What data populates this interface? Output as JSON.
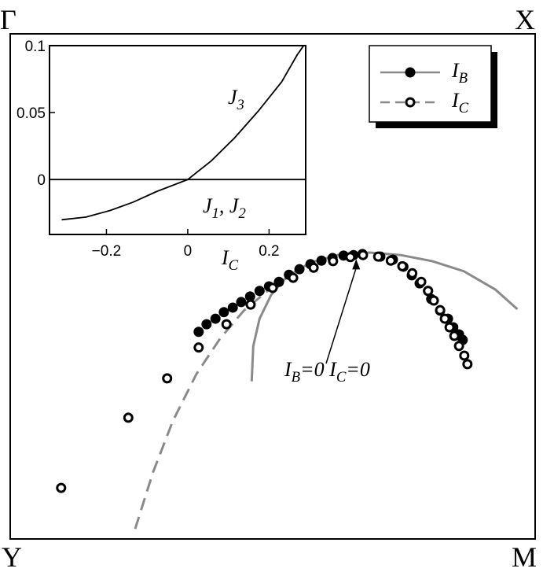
{
  "chart_data": [
    {
      "type": "scatter",
      "corners": {
        "top_left": "Γ",
        "top_right": "X",
        "bottom_left": "Y",
        "bottom_right": "M"
      },
      "xlim": [
        0,
        1
      ],
      "ylim": [
        1,
        0
      ],
      "legend": "top-right",
      "series": [
        {
          "name": [
            {
              "text": "I"
            },
            {
              "text": "B",
              "sub": true
            }
          ],
          "color": "#000000",
          "marker": "filled",
          "line_color": "#8a8a8a",
          "line_style": "solid",
          "x": [
            0.359,
            0.374,
            0.391,
            0.407,
            0.424,
            0.44,
            0.457,
            0.475,
            0.493,
            0.512,
            0.531,
            0.551,
            0.572,
            0.593,
            0.614,
            0.635,
            0.654,
            0.671,
            0.705,
            0.729,
            0.749,
            0.765,
            0.78,
            0.796,
            0.802,
            0.819,
            0.834,
            0.844,
            0.855,
            0.862
          ],
          "y": [
            0.59,
            0.575,
            0.564,
            0.551,
            0.542,
            0.531,
            0.52,
            0.509,
            0.5,
            0.491,
            0.477,
            0.466,
            0.456,
            0.449,
            0.444,
            0.439,
            0.438,
            0.436,
            0.441,
            0.447,
            0.461,
            0.478,
            0.494,
            0.509,
            0.525,
            0.548,
            0.564,
            0.581,
            0.595,
            0.606
          ],
          "curve_x": [
            0.46,
            0.463,
            0.475,
            0.497,
            0.527,
            0.572,
            0.624,
            0.684,
            0.744,
            0.804,
            0.864,
            0.924,
            0.966
          ],
          "curve_y": [
            0.688,
            0.618,
            0.564,
            0.517,
            0.481,
            0.453,
            0.438,
            0.433,
            0.438,
            0.45,
            0.47,
            0.506,
            0.545
          ]
        },
        {
          "name": [
            {
              "text": "I"
            },
            {
              "text": "C",
              "sub": true
            }
          ],
          "color": "#000000",
          "marker": "open",
          "line_color": "#8a8a8a",
          "line_style": "dashed",
          "x": [
            0.097,
            0.225,
            0.299,
            0.359,
            0.412,
            0.458,
            0.5,
            0.539,
            0.578,
            0.615,
            0.648,
            0.672,
            0.701,
            0.725,
            0.747,
            0.766,
            0.783,
            0.796,
            0.807,
            0.819,
            0.828,
            0.837,
            0.846,
            0.855,
            0.865,
            0.871
          ],
          "y": [
            0.899,
            0.76,
            0.682,
            0.621,
            0.575,
            0.536,
            0.503,
            0.483,
            0.463,
            0.45,
            0.442,
            0.438,
            0.441,
            0.449,
            0.46,
            0.474,
            0.491,
            0.509,
            0.528,
            0.547,
            0.564,
            0.581,
            0.598,
            0.618,
            0.637,
            0.654
          ],
          "curve_x": [
            0.238,
            0.272,
            0.31,
            0.355,
            0.4,
            0.445,
            0.49,
            0.534
          ],
          "curve_y": [
            0.98,
            0.868,
            0.766,
            0.673,
            0.603,
            0.548,
            0.509,
            0.478
          ]
        }
      ],
      "annotation": {
        "text": [
          {
            "text": "I"
          },
          {
            "text": "B",
            "sub": true
          },
          {
            "text": "=0 I"
          },
          {
            "text": "C",
            "sub": true
          },
          {
            "text": "=0"
          }
        ],
        "x": 0.662,
        "y": 0.443
      }
    },
    {
      "type": "line",
      "xlabel": [
        {
          "text": "I"
        },
        {
          "text": "C",
          "sub": true
        }
      ],
      "xlim": [
        -0.34,
        0.29
      ],
      "ylim": [
        -0.041,
        0.1
      ],
      "xticks": [
        {
          "value": -0.2,
          "label": "−0.2"
        },
        0,
        0.2
      ],
      "yticks": [
        0,
        0.05,
        0.1
      ],
      "series": [
        {
          "name": [
            {
              "text": "J"
            },
            {
              "text": "3",
              "sub": true
            }
          ],
          "color": "#000000",
          "x": [
            -0.31,
            -0.25,
            -0.19,
            -0.135,
            -0.077,
            0,
            0.058,
            0.115,
            0.173,
            0.231,
            0.269,
            0.285
          ],
          "values": [
            -0.03,
            -0.028,
            -0.023,
            -0.017,
            -0.009,
            0,
            0.014,
            0.031,
            0.051,
            0.073,
            0.093,
            0.1
          ]
        },
        {
          "name": [
            {
              "text": "J"
            },
            {
              "text": "1",
              "sub": true
            },
            {
              "text": ", J"
            },
            {
              "text": "2",
              "sub": true
            }
          ],
          "color": "#000000",
          "x": [
            -0.34,
            0.29
          ],
          "values": [
            0,
            0
          ]
        }
      ]
    }
  ]
}
